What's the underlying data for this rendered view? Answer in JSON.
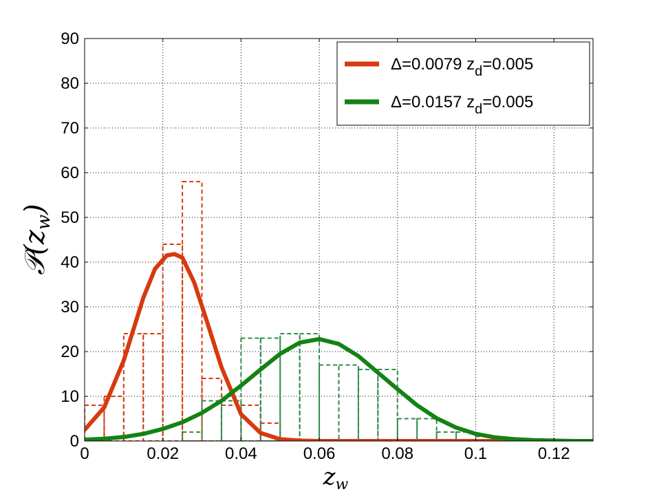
{
  "chart_data": {
    "type": "line",
    "xlabel": "z_w",
    "ylabel": "P(z_w)",
    "xlim": [
      0,
      0.13
    ],
    "ylim": [
      0,
      90
    ],
    "xticks": [
      0,
      0.02,
      0.04,
      0.06,
      0.08,
      0.1,
      0.12
    ],
    "xtick_labels": [
      "0",
      "0.02",
      "0.04",
      "0.06",
      "0.08",
      "0.1",
      "0.12"
    ],
    "yticks": [
      0,
      10,
      20,
      30,
      40,
      50,
      60,
      70,
      80,
      90
    ],
    "ytick_labels": [
      "0",
      "10",
      "20",
      "30",
      "40",
      "50",
      "60",
      "70",
      "80",
      "90"
    ],
    "grid": true,
    "legend_position": "top-right",
    "series": [
      {
        "name": "Δ=0.0079 z_d=0.005",
        "legend": {
          "prefix": "Δ=0.0079 z",
          "sub": "d",
          "suffix": "=0.005"
        },
        "color": "#d63a0f",
        "curve": {
          "x": [
            0,
            0.005,
            0.01,
            0.015,
            0.018,
            0.021,
            0.023,
            0.025,
            0.028,
            0.031,
            0.035,
            0.04,
            0.045,
            0.05,
            0.055,
            0.06,
            0.07,
            0.08,
            0.09,
            0.1,
            0.11,
            0.12,
            0.13
          ],
          "y": [
            2.5,
            7.5,
            18,
            32,
            38.5,
            41.5,
            41.8,
            41,
            35.5,
            27.5,
            16.5,
            6,
            1.8,
            0.4,
            0.1,
            0,
            0,
            0,
            0,
            0,
            0,
            0,
            0
          ]
        },
        "histogram": {
          "edges": [
            0,
            0.005,
            0.01,
            0.015,
            0.02,
            0.025,
            0.03,
            0.035,
            0.04,
            0.045,
            0.05,
            0.055,
            0.06,
            0.065,
            0.07,
            0.075,
            0.08,
            0.085,
            0.09,
            0.095,
            0.1,
            0.105
          ],
          "values": [
            8,
            10,
            24,
            24,
            44,
            58,
            14,
            8,
            8,
            4,
            0,
            0,
            0,
            0,
            0,
            0,
            0,
            0,
            0,
            0,
            0
          ]
        }
      },
      {
        "name": "Δ=0.0157 z_d=0.005",
        "legend": {
          "prefix": "Δ=0.0157 z",
          "sub": "d",
          "suffix": "=0.005"
        },
        "color": "#148214",
        "hist_color": "#2e8a4c",
        "curve": {
          "x": [
            0,
            0.005,
            0.01,
            0.015,
            0.02,
            0.025,
            0.03,
            0.035,
            0.04,
            0.045,
            0.05,
            0.055,
            0.06,
            0.065,
            0.07,
            0.075,
            0.08,
            0.085,
            0.09,
            0.095,
            0.1,
            0.105,
            0.11,
            0.115,
            0.12,
            0.125,
            0.13
          ],
          "y": [
            0.3,
            0.5,
            0.9,
            1.6,
            2.7,
            4.2,
            6.3,
            9,
            12.4,
            16,
            19.5,
            22,
            22.8,
            21.7,
            19,
            15.3,
            11.6,
            8,
            5.1,
            3,
            1.6,
            0.8,
            0.4,
            0.2,
            0.1,
            0,
            0
          ]
        },
        "histogram": {
          "edges": [
            0.025,
            0.03,
            0.035,
            0.04,
            0.045,
            0.05,
            0.055,
            0.06,
            0.065,
            0.07,
            0.075,
            0.08,
            0.085,
            0.09,
            0.095,
            0.1,
            0.105
          ],
          "values": [
            2,
            9,
            9,
            23,
            23,
            24,
            24,
            17,
            17,
            16,
            16,
            5,
            5,
            2,
            2,
            1
          ]
        }
      }
    ]
  }
}
